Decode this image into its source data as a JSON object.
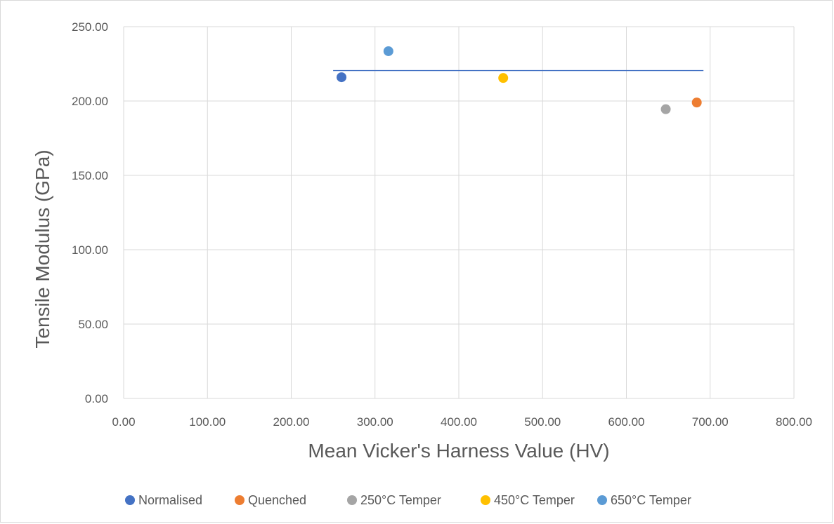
{
  "chart_data": {
    "type": "scatter",
    "xlabel": "Mean Vicker's Harness Value (HV)",
    "ylabel": "Tensile Modulus (GPa)",
    "xlim": [
      0,
      800
    ],
    "ylim": [
      0,
      250
    ],
    "x_ticks": [
      "0.00",
      "100.00",
      "200.00",
      "300.00",
      "400.00",
      "500.00",
      "600.00",
      "700.00",
      "800.00"
    ],
    "y_ticks": [
      "0.00",
      "50.00",
      "100.00",
      "150.00",
      "200.00",
      "250.00"
    ],
    "grid": true,
    "legend_position": "bottom",
    "series": [
      {
        "name": "Normalised",
        "color": "#4472C4",
        "points": [
          [
            260,
            216
          ]
        ]
      },
      {
        "name": "Quenched",
        "color": "#ED7D31",
        "points": [
          [
            684,
            199
          ]
        ]
      },
      {
        "name": "250°C Temper",
        "color": "#A5A5A5",
        "points": [
          [
            647,
            194.5
          ]
        ]
      },
      {
        "name": "450°C Temper",
        "color": "#FFC000",
        "points": [
          [
            453,
            215.5
          ]
        ]
      },
      {
        "name": "650°C Temper",
        "color": "#5B9BD5",
        "points": [
          [
            316,
            233.5
          ]
        ]
      }
    ],
    "reference_line": {
      "color": "#4472C4",
      "x": [
        250,
        692
      ],
      "y": [
        220.5,
        220.5
      ]
    }
  }
}
